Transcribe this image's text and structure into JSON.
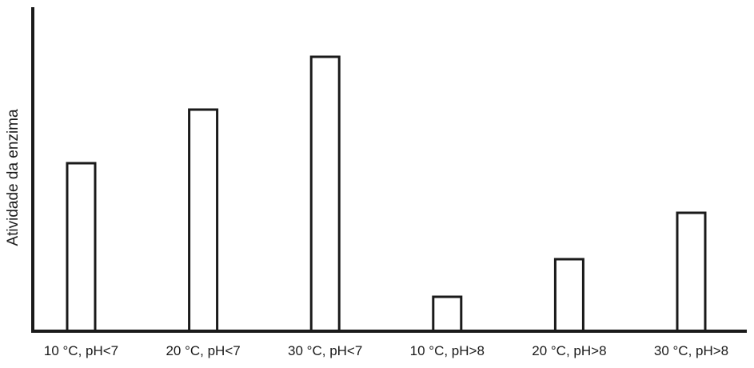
{
  "chart_data": {
    "type": "bar",
    "title": "",
    "xlabel": "",
    "ylabel": "Atividade da enzima",
    "categories": [
      "10 °C, pH<7",
      "20 °C, pH<7",
      "30 °C, pH<7",
      "10 °C, pH>8",
      "20 °C, pH>8",
      "30 °C, pH>8"
    ],
    "values": [
      210,
      277,
      343,
      43,
      90,
      148
    ],
    "ylim": [
      0,
      405
    ],
    "grid": false,
    "legend": "none",
    "bar_fill": "#ffffff",
    "bar_stroke": "#1a1a1a",
    "axis_color": "#1a1a1a"
  }
}
